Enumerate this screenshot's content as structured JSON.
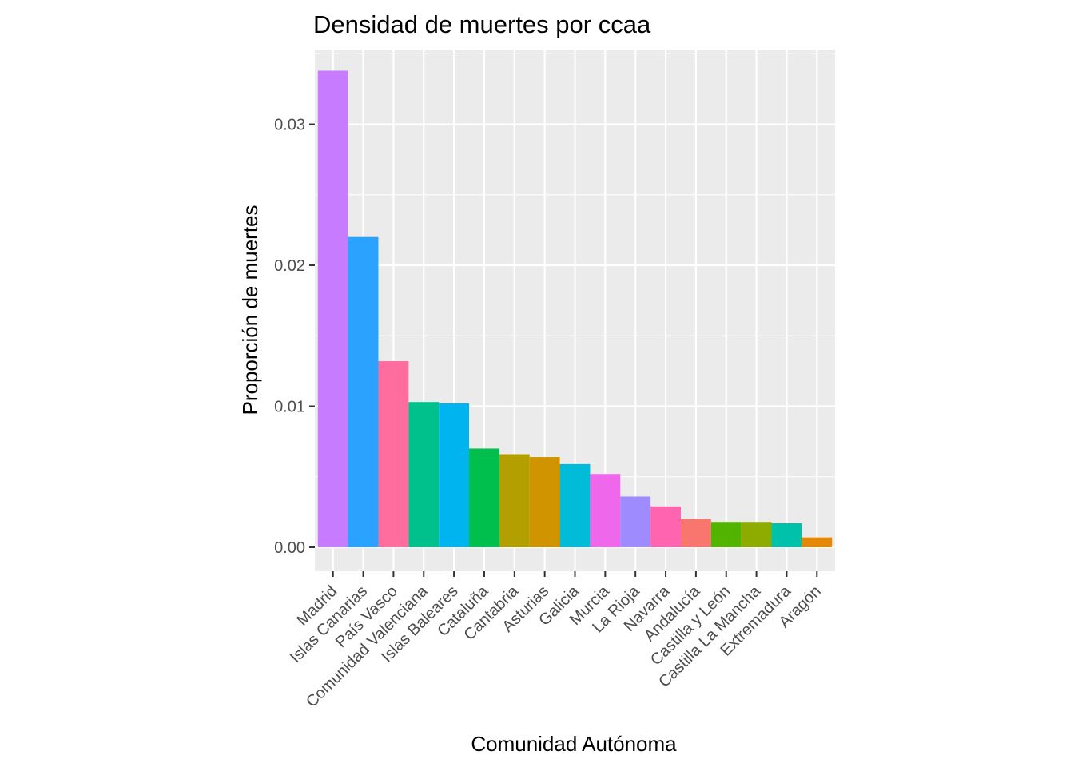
{
  "chart_data": {
    "type": "bar",
    "title": "Densidad de muertes por ccaa",
    "xlabel": "Comunidad Autónoma",
    "ylabel": "Proporción de muertes",
    "ylim": [
      -0.0017,
      0.0353
    ],
    "yticks": [
      0.0,
      0.01,
      0.02,
      0.03
    ],
    "ytick_labels": [
      "0.00",
      "0.01",
      "0.02",
      "0.03"
    ],
    "grid": true,
    "legend": "none",
    "categories": [
      "Madrid",
      "Islas Canarias",
      "País Vasco",
      "Comunidad Valenciana",
      "Islas Baleares",
      "Cataluña",
      "Cantabria",
      "Asturias",
      "Galicia",
      "Murcia",
      "La Rioja",
      "Navarra",
      "Andalucía",
      "Castilla y León",
      "Castilla La Mancha",
      "Extremadura",
      "Aragón"
    ],
    "values": [
      0.0338,
      0.022,
      0.0132,
      0.0103,
      0.0102,
      0.007,
      0.0066,
      0.0064,
      0.0059,
      0.0052,
      0.0036,
      0.0029,
      0.002,
      0.0018,
      0.0018,
      0.0017,
      0.0007
    ],
    "colors": [
      "#C77CFF",
      "#29A3FF",
      "#FF6C9E",
      "#00C08B",
      "#00B4F0",
      "#00BF4C",
      "#B3A000",
      "#D09400",
      "#00BCD8",
      "#EF67EB",
      "#9E8CFF",
      "#FF64B0",
      "#F8766D",
      "#53B400",
      "#8EAB00",
      "#00C1A9",
      "#E58708"
    ]
  }
}
